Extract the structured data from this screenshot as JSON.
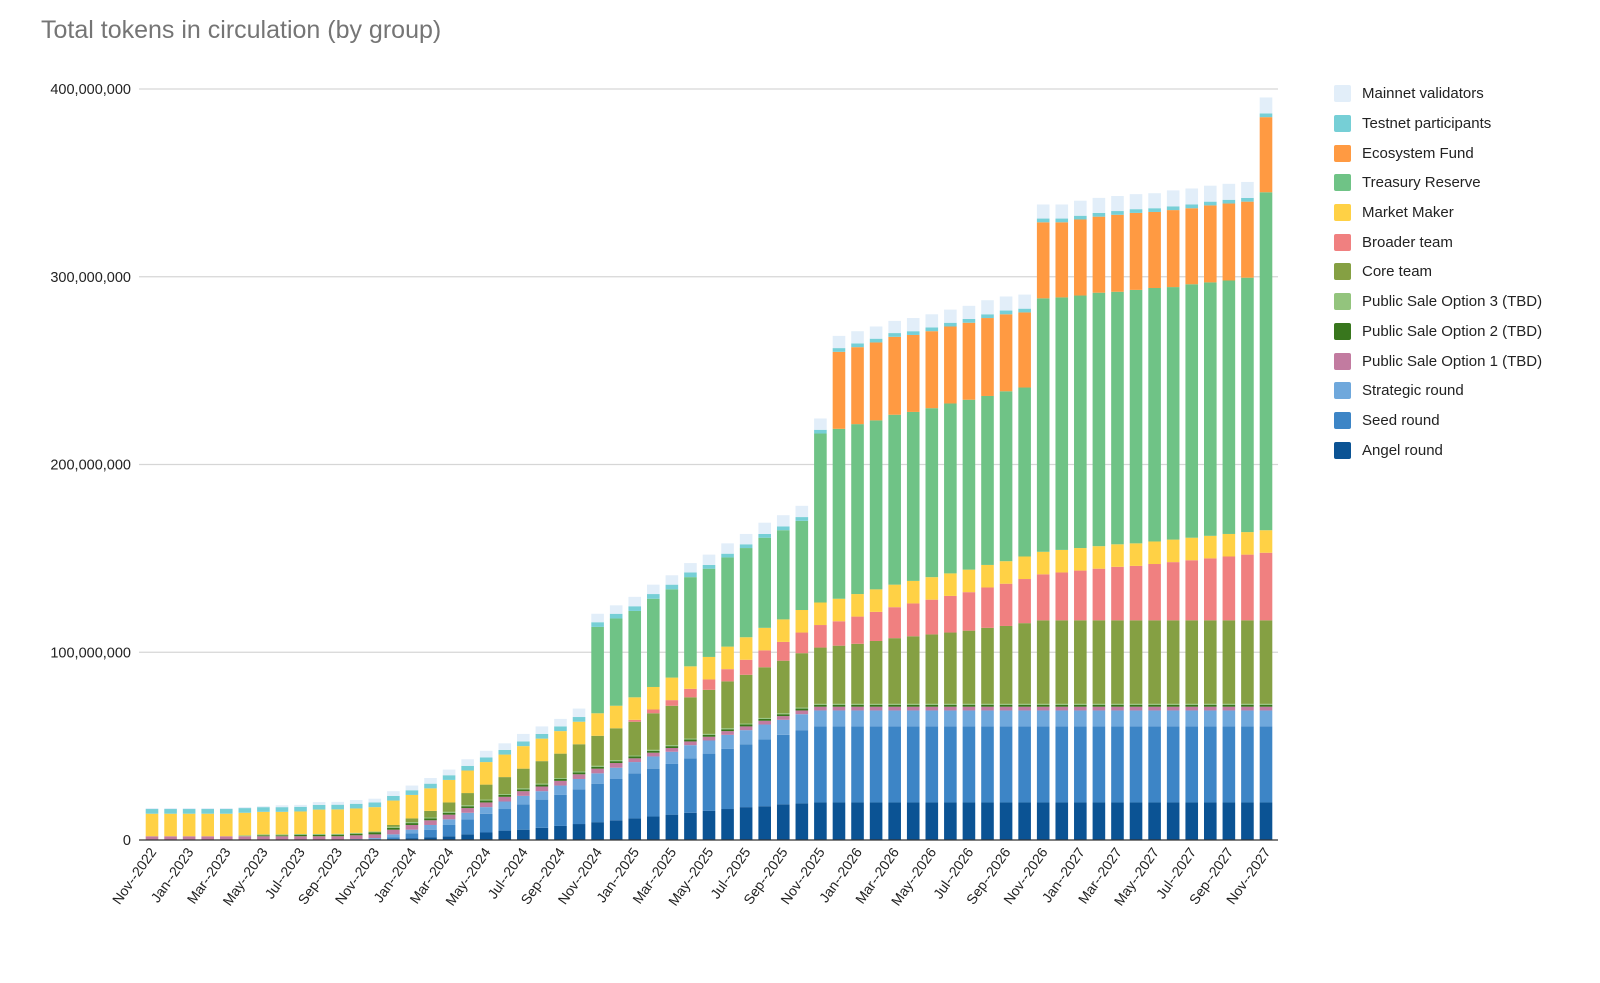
{
  "chart_data": {
    "type": "bar",
    "stacked": true,
    "title": "Total tokens in circulation (by group)",
    "xlabel": "",
    "ylabel": "",
    "ylim": [
      0,
      400000000
    ],
    "yticks": [
      0,
      100000000,
      200000000,
      300000000,
      400000000
    ],
    "ytick_labels": [
      "0",
      "100,000,000",
      "200,000,000",
      "300,000,000",
      "400,000,000"
    ],
    "grid": true,
    "legend_position": "right",
    "units": "tokens (millions in series values)",
    "categories": [
      "Nov--2022",
      "Dec--2022",
      "Jan--2023",
      "Feb--2023",
      "Mar--2023",
      "Apr--2023",
      "May--2023",
      "Jun--2023",
      "Jul--2023",
      "Aug--2023",
      "Sep--2023",
      "Oct--2023",
      "Nov--2023",
      "Dec--2023",
      "Jan--2024",
      "Feb--2024",
      "Mar--2024",
      "Apr--2024",
      "May--2024",
      "Jun--2024",
      "Jul--2024",
      "Aug--2024",
      "Sep--2024",
      "Oct--2024",
      "Nov--2024",
      "Dec--2024",
      "Jan--2025",
      "Feb--2025",
      "Mar--2025",
      "Apr--2025",
      "May--2025",
      "Jun--2025",
      "Jul--2025",
      "Aug--2025",
      "Sep--2025",
      "Oct--2025",
      "Nov--2025",
      "Dec--2025",
      "Jan--2026",
      "Feb--2026",
      "Mar--2026",
      "Apr--2026",
      "May--2026",
      "Jun--2026",
      "Jul--2026",
      "Aug--2026",
      "Sep--2026",
      "Oct--2026",
      "Nov--2026",
      "Dec--2026",
      "Jan--2027",
      "Feb--2027",
      "Mar--2027",
      "Apr--2027",
      "May--2027",
      "Jun--2027",
      "Jul--2027",
      "Aug--2027",
      "Sep--2027",
      "Oct--2027",
      "Nov--2027"
    ],
    "tick_labels_shown": [
      "Nov--2022",
      "Jan--2023",
      "Mar--2023",
      "May--2023",
      "Jul--2023",
      "Sep--2023",
      "Nov--2023",
      "Jan--2024",
      "Mar--2024",
      "May--2024",
      "Jul--2024",
      "Sep--2024",
      "Nov--2024",
      "Jan--2025",
      "Mar--2025",
      "May--2025",
      "Jul--2025",
      "Sep--2025",
      "Nov--2025",
      "Jan--2026",
      "Mar--2026",
      "May--2026",
      "Jul--2026",
      "Sep--2026",
      "Nov--2026",
      "Jan--2027",
      "Mar--2027",
      "May--2027",
      "Jul--2027",
      "Sep--2027",
      "Nov--2027"
    ],
    "series": [
      {
        "name": "Angel round",
        "color": "#0b5394",
        "values": [
          0,
          0,
          0,
          0,
          0,
          0,
          0,
          0,
          0,
          0,
          0,
          0,
          0,
          0.5,
          1,
          1.5,
          2,
          3,
          4,
          5,
          5.5,
          6.5,
          7.5,
          8.5,
          9.5,
          10.5,
          11.5,
          12.5,
          13.5,
          14.5,
          15.5,
          16.5,
          17.5,
          18,
          19,
          19.5,
          20,
          20,
          20,
          20,
          20,
          20,
          20,
          20,
          20,
          20,
          20,
          20,
          20,
          20,
          20,
          20,
          20,
          20,
          20,
          20,
          20,
          20,
          20,
          20,
          20
        ]
      },
      {
        "name": "Seed round",
        "color": "#3d85c6",
        "values": [
          0,
          0,
          0,
          0,
          0,
          0,
          0,
          0,
          0,
          0,
          0,
          0,
          0,
          1,
          2.5,
          4,
          6,
          8,
          10,
          11.5,
          13.5,
          15,
          16.5,
          18.5,
          20.5,
          22,
          24,
          25.5,
          27,
          29,
          30.5,
          32,
          33.5,
          35.5,
          37,
          39,
          40.5,
          40.5,
          40.5,
          40.5,
          40.5,
          40.5,
          40.5,
          40.5,
          40.5,
          40.5,
          40.5,
          40.5,
          40.5,
          40.5,
          40.5,
          40.5,
          40.5,
          40.5,
          40.5,
          40.5,
          40.5,
          40.5,
          40.5,
          40.5,
          40.5
        ]
      },
      {
        "name": "Strategic round",
        "color": "#6fa8dc",
        "values": [
          0,
          0,
          0,
          0,
          0,
          0,
          0,
          0,
          0,
          0,
          0,
          0.5,
          1,
          1.5,
          2,
          2.5,
          3,
          3.5,
          3.5,
          4,
          4.5,
          4.5,
          5,
          5.5,
          5.5,
          6,
          6,
          6.5,
          6.5,
          7,
          7,
          7.5,
          7.5,
          8,
          8,
          8.5,
          8.5,
          8.5,
          8.5,
          8.5,
          8.5,
          8.5,
          8.5,
          8.5,
          8.5,
          8.5,
          8.5,
          8.5,
          8.5,
          8.5,
          8.5,
          8.5,
          8.5,
          8.5,
          8.5,
          8.5,
          8.5,
          8.5,
          8.5,
          8.5,
          8.5
        ]
      },
      {
        "name": "Public Sale Option 1 (TBD)",
        "color": "#c27ba0",
        "values": [
          2,
          2,
          2,
          2,
          2,
          2,
          2,
          2,
          2,
          2,
          2,
          2,
          2,
          2.5,
          2.5,
          2.5,
          2.5,
          2.5,
          2.5,
          2.5,
          2.5,
          2.5,
          2.5,
          2.5,
          2.5,
          2.5,
          2,
          2,
          2,
          2,
          2,
          2,
          2,
          2,
          2,
          2,
          2,
          2,
          2,
          2,
          2,
          2,
          2,
          2,
          2,
          2,
          2,
          2,
          2,
          2,
          2,
          2,
          2,
          2,
          2,
          2,
          2,
          2,
          2,
          2,
          2
        ]
      },
      {
        "name": "Public Sale Option 2 (TBD)",
        "color": "#38761d",
        "values": [
          0,
          0,
          0,
          0,
          0,
          0,
          0.5,
          0.5,
          0.7,
          0.7,
          0.8,
          0.8,
          1,
          1,
          1,
          1,
          1,
          1,
          1,
          1,
          1,
          1,
          1,
          1,
          1,
          1,
          1,
          1,
          1,
          1,
          1,
          1,
          1,
          1,
          1,
          1,
          1,
          1,
          1,
          1,
          1,
          1,
          1,
          1,
          1,
          1,
          1,
          1,
          1,
          1,
          1,
          1,
          1,
          1,
          1,
          1,
          1,
          1,
          1,
          1,
          1
        ]
      },
      {
        "name": "Public Sale Option 3 (TBD)",
        "color": "#93c47d",
        "values": [
          0,
          0,
          0,
          0,
          0,
          0.5,
          0.5,
          0.5,
          0.5,
          0.5,
          0.5,
          0.5,
          0.5,
          0.5,
          0.5,
          0.5,
          0.5,
          0.5,
          0.5,
          0.5,
          0.5,
          0.5,
          0.5,
          0.5,
          0.5,
          0.5,
          0.5,
          0.5,
          0.5,
          0.5,
          0.5,
          0.5,
          0.5,
          0.5,
          0.5,
          0.5,
          0.5,
          0.5,
          0.5,
          0.5,
          0.5,
          0.5,
          0.5,
          0.5,
          0.5,
          0.5,
          0.5,
          0.5,
          0.5,
          0.5,
          0.5,
          0.5,
          0.5,
          0.5,
          0.5,
          0.5,
          0.5,
          0.5,
          0.5,
          0.5,
          0.5
        ]
      },
      {
        "name": "Core team",
        "color": "#85a043",
        "values": [
          0,
          0,
          0,
          0,
          0,
          0,
          0,
          0,
          0,
          0,
          0,
          0,
          0,
          1,
          2,
          3.5,
          5,
          6.5,
          8,
          9,
          10.5,
          12,
          13,
          14.5,
          16,
          17,
          18,
          19.5,
          21,
          22,
          23.5,
          25,
          26,
          27,
          28,
          29,
          30,
          31,
          32,
          33.5,
          35,
          36,
          37,
          38,
          39,
          40.5,
          41.5,
          43,
          44.5,
          44.5,
          44.5,
          44.5,
          44.5,
          44.5,
          44.5,
          44.5,
          44.5,
          44.5,
          44.5,
          44.5,
          44.5
        ]
      },
      {
        "name": "Broader team",
        "color": "#f08080",
        "values": [
          0,
          0,
          0,
          0,
          0,
          0,
          0,
          0,
          0,
          0,
          0,
          0,
          0,
          0,
          0,
          0,
          0,
          0,
          0,
          0,
          0,
          0,
          0,
          0,
          0,
          0,
          1,
          2,
          3,
          4.5,
          5.5,
          6.5,
          8,
          9,
          10,
          11,
          12,
          13,
          14.5,
          15.5,
          16.5,
          17.5,
          18.5,
          19.5,
          20.5,
          21.5,
          22.5,
          23.5,
          24.5,
          25.5,
          26.5,
          27.5,
          28.5,
          29,
          30,
          31,
          32,
          33,
          34,
          35,
          36
        ]
      },
      {
        "name": "Market Maker",
        "color": "#ffd145",
        "values": [
          12,
          12,
          12,
          12,
          12,
          12,
          12,
          12,
          12,
          13,
          13,
          13,
          13,
          13,
          12.5,
          12,
          12,
          12,
          12,
          12,
          12,
          12,
          12,
          12,
          12,
          12,
          12,
          12,
          12,
          12,
          12,
          12,
          12,
          12,
          12,
          12,
          12,
          12,
          12,
          12,
          12,
          12,
          12,
          12,
          12,
          12,
          12,
          12,
          12,
          12,
          12,
          12,
          12,
          12,
          12,
          12,
          12,
          12,
          12,
          12,
          12
        ]
      },
      {
        "name": "Treasury Reserve",
        "color": "#6fc386",
        "values": [
          0,
          0,
          0,
          0,
          0,
          0,
          0,
          0,
          0,
          0,
          0,
          0,
          0,
          0,
          0,
          0,
          0,
          0,
          0,
          0,
          0,
          0,
          0,
          0,
          46,
          46.5,
          46,
          47,
          47,
          47.5,
          47,
          47.5,
          47.5,
          48,
          47.5,
          47.5,
          90,
          90.5,
          90.5,
          90,
          90.5,
          90,
          90,
          90.5,
          90.5,
          90,
          90.5,
          90,
          135,
          134.5,
          134.5,
          135,
          134.5,
          135,
          135,
          134.5,
          135,
          135,
          135,
          135.5,
          180
        ]
      },
      {
        "name": "Ecosystem Fund",
        "color": "#ff9a42",
        "values": [
          0,
          0,
          0,
          0,
          0,
          0,
          0,
          0,
          0,
          0,
          0,
          0,
          0,
          0,
          0,
          0,
          0,
          0,
          0,
          0,
          0,
          0,
          0,
          0,
          0,
          0,
          0,
          0,
          0,
          0,
          0,
          0,
          0,
          0,
          0,
          0,
          0,
          41,
          41,
          41.5,
          41.5,
          41,
          41,
          41,
          41,
          41.5,
          41,
          40,
          40.5,
          40,
          40.5,
          40.5,
          41,
          41,
          40.5,
          41,
          40.5,
          41,
          41,
          40.5,
          40
        ]
      },
      {
        "name": "Testnet participants",
        "color": "#76cfd6",
        "values": [
          2.5,
          2.5,
          2.5,
          2.5,
          2.5,
          2.5,
          2.5,
          2.5,
          2.5,
          2.5,
          2.5,
          2.5,
          2.5,
          2.5,
          2.5,
          2.5,
          2.5,
          2.5,
          2.5,
          2.5,
          2.5,
          2.5,
          2.5,
          2.5,
          2.5,
          2.5,
          2.5,
          2.5,
          2.5,
          2.5,
          2,
          2,
          2,
          2,
          2,
          2,
          2,
          2,
          2,
          2,
          2,
          2,
          2,
          2,
          2,
          2,
          2,
          2,
          2,
          2,
          2,
          2,
          2,
          2,
          2,
          2,
          2,
          2,
          2,
          2,
          2
        ]
      },
      {
        "name": "Mainnet validators",
        "color": "#e2eef9",
        "values": [
          0.5,
          0.5,
          0.5,
          0.5,
          0.5,
          0.5,
          0.5,
          1,
          1,
          1.5,
          1.5,
          2,
          2,
          2.5,
          2.5,
          3,
          3,
          3.5,
          3.5,
          3.5,
          4,
          4,
          4,
          4.5,
          4.5,
          4.5,
          5,
          5,
          5,
          5,
          5.5,
          5.5,
          5.5,
          6,
          6,
          6,
          6,
          6.5,
          6.5,
          6.5,
          6.5,
          7,
          7,
          7,
          7,
          7.5,
          7.5,
          7.5,
          7.5,
          7.5,
          8,
          8,
          8,
          8,
          8,
          8.5,
          8.5,
          8.5,
          8.5,
          8.5,
          8.5
        ]
      }
    ]
  },
  "legend": [
    {
      "label": "Mainnet validators",
      "color": "#e2eef9"
    },
    {
      "label": "Testnet participants",
      "color": "#76cfd6"
    },
    {
      "label": "Ecosystem Fund",
      "color": "#ff9a42"
    },
    {
      "label": "Treasury Reserve",
      "color": "#6fc386"
    },
    {
      "label": "Market Maker",
      "color": "#ffd145"
    },
    {
      "label": "Broader team",
      "color": "#f08080"
    },
    {
      "label": "Core team",
      "color": "#85a043"
    },
    {
      "label": "Public Sale Option 3 (TBD)",
      "color": "#93c47d"
    },
    {
      "label": "Public Sale Option 2 (TBD)",
      "color": "#38761d"
    },
    {
      "label": "Public Sale Option 1 (TBD)",
      "color": "#c27ba0"
    },
    {
      "label": "Strategic round",
      "color": "#6fa8dc"
    },
    {
      "label": "Seed round",
      "color": "#3d85c6"
    },
    {
      "label": "Angel round",
      "color": "#0b5394"
    }
  ]
}
